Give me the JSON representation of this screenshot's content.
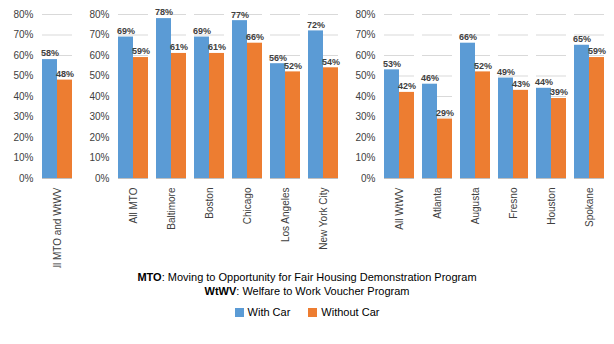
{
  "chart_data": {
    "type": "bar",
    "categories": [
      "All MTO and WtWV",
      null,
      "All MTO",
      "Baltimore",
      "Boston",
      "Chicago",
      "Los Angeles",
      "New York City",
      null,
      "All WtWV",
      "Atlanta",
      "Augusta",
      "Fresno",
      "Houston",
      "Spokane"
    ],
    "series": [
      {
        "name": "With Car",
        "color": "#5B9BD5",
        "values": [
          58,
          null,
          69,
          78,
          69,
          77,
          56,
          72,
          null,
          53,
          46,
          66,
          49,
          44,
          65
        ],
        "value_labels": [
          "58%",
          null,
          "69%",
          "78%",
          "69%",
          "77%",
          "56%",
          "72%",
          null,
          "53%",
          "46%",
          "66%",
          "49%",
          "44%",
          "65%"
        ]
      },
      {
        "name": "Without Car",
        "color": "#ED7D31",
        "values": [
          48,
          null,
          59,
          61,
          61,
          66,
          52,
          54,
          null,
          42,
          29,
          52,
          43,
          39,
          59
        ],
        "value_labels": [
          "48%",
          null,
          "59%",
          "61%",
          "61%",
          "66%",
          "52%",
          "54%",
          null,
          "42%",
          "29%",
          "52%",
          "43%",
          "39%",
          "59%"
        ]
      }
    ],
    "ylim": [
      0,
      80
    ],
    "yticks": [
      {
        "value": 0,
        "label": "0%"
      },
      {
        "value": 10,
        "label": "10%"
      },
      {
        "value": 20,
        "label": "20%"
      },
      {
        "value": 30,
        "label": "30%"
      },
      {
        "value": 40,
        "label": "40%"
      },
      {
        "value": 50,
        "label": "50%"
      },
      {
        "value": 60,
        "label": "60%"
      },
      {
        "value": 70,
        "label": "70%"
      },
      {
        "value": 80,
        "label": "80%"
      }
    ],
    "grid": true,
    "data_labels": true,
    "legend": "bottom",
    "annotations": [
      "MTO: Moving to Opportunity for Fair Housing Demonstration Program",
      "WtWV: Welfare to Work Voucher Program"
    ]
  }
}
